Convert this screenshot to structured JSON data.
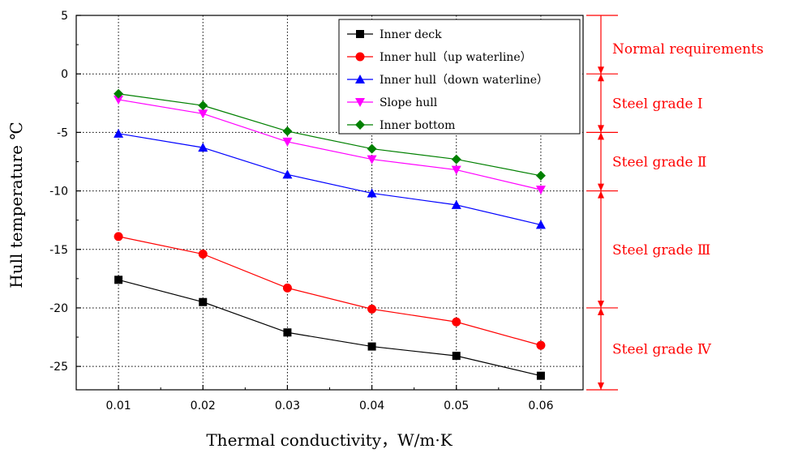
{
  "chart_data": {
    "type": "line",
    "title": "",
    "xlabel": "Thermal conductivity，W/m·K",
    "ylabel": "Hull temperature ℃",
    "x": [
      0.01,
      0.02,
      0.03,
      0.04,
      0.05,
      0.06
    ],
    "x_ticks": [
      "0.01",
      "0.02",
      "0.03",
      "0.04",
      "0.05",
      "0.06"
    ],
    "xlim": [
      0.005,
      0.065
    ],
    "ylim": [
      -27,
      5
    ],
    "y_ticks": [
      "5",
      "0",
      "-5",
      "-10",
      "-15",
      "-20",
      "-25"
    ],
    "y_tick_values": [
      5,
      0,
      -5,
      -10,
      -15,
      -20,
      -25
    ],
    "grid": true,
    "legend_position": "top-right",
    "series": [
      {
        "name": "Inner deck",
        "color": "#000000",
        "marker": "square",
        "values": [
          -17.6,
          -19.5,
          -22.1,
          -23.3,
          -24.1,
          -25.8
        ]
      },
      {
        "name": "Inner hull（up waterline）",
        "color": "#ff0000",
        "marker": "circle",
        "values": [
          -13.9,
          -15.4,
          -18.3,
          -20.1,
          -21.2,
          -23.2
        ]
      },
      {
        "name": "Inner hull（down waterline）",
        "color": "#0000ff",
        "marker": "triangle-up",
        "values": [
          -5.1,
          -6.3,
          -8.6,
          -10.2,
          -11.2,
          -12.9
        ]
      },
      {
        "name": "Slope hull",
        "color": "#ff00ff",
        "marker": "triangle-down",
        "values": [
          -2.2,
          -3.4,
          -5.8,
          -7.3,
          -8.2,
          -9.9
        ]
      },
      {
        "name": "Inner bottom",
        "color": "#008000",
        "marker": "diamond",
        "values": [
          -1.7,
          -2.7,
          -4.9,
          -6.4,
          -7.3,
          -8.7
        ]
      }
    ],
    "annotation_color": "#ff0000",
    "annotations": [
      {
        "label": "Normal requirements",
        "y_range": [
          0,
          5
        ]
      },
      {
        "label": "Steel grade Ⅰ",
        "y_range": [
          -5,
          0
        ]
      },
      {
        "label": "Steel grade Ⅱ",
        "y_range": [
          -10,
          -5
        ]
      },
      {
        "label": "Steel grade Ⅲ",
        "y_range": [
          -20,
          -10
        ]
      },
      {
        "label": "Steel grade Ⅳ",
        "y_range": [
          -27,
          -20
        ]
      }
    ]
  }
}
